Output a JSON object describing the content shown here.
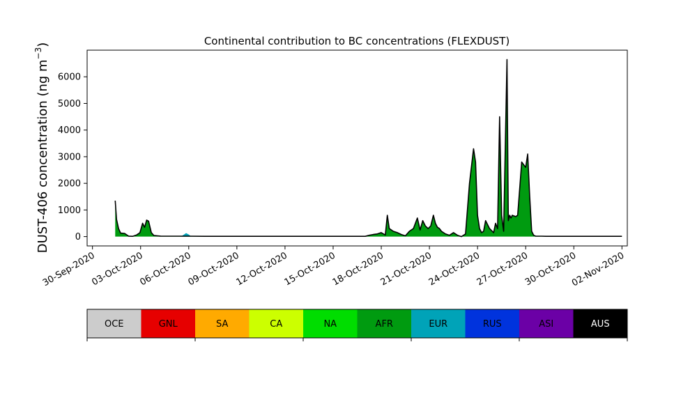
{
  "chart_data": {
    "type": "area",
    "title": "Continental contribution to BC concentrations (FLEXDUST)",
    "ylabel_main": "DUST-406 concentration (ng m",
    "ylabel_sup": "−3",
    "ylabel_close": ")",
    "xlabel": "",
    "xlim": [
      "2020-09-29T16:00",
      "2020-11-02T08:00"
    ],
    "ylim": [
      -350,
      7000
    ],
    "yticks": [
      0,
      1000,
      2000,
      3000,
      4000,
      5000,
      6000
    ],
    "ytick_labels": [
      "0",
      "1000",
      "2000",
      "3000",
      "4000",
      "5000",
      "6000"
    ],
    "xtick_dates": [
      "2020-09-30",
      "2020-10-03",
      "2020-10-06",
      "2020-10-09",
      "2020-10-12",
      "2020-10-15",
      "2020-10-18",
      "2020-10-21",
      "2020-10-24",
      "2020-10-27",
      "2020-10-30",
      "2020-11-02"
    ],
    "xtick_labels": [
      "30-Sep-2020",
      "03-Oct-2020",
      "06-Oct-2020",
      "09-Oct-2020",
      "12-Oct-2020",
      "15-Oct-2020",
      "18-Oct-2020",
      "21-Oct-2020",
      "24-Oct-2020",
      "27-Oct-2020",
      "30-Oct-2020",
      "02-Nov-2020"
    ],
    "legend": [
      {
        "label": "OCE",
        "color": "#cccccc",
        "text_color": "#000000"
      },
      {
        "label": "GNL",
        "color": "#e60000",
        "text_color": "#000000"
      },
      {
        "label": "SA",
        "color": "#ffaa00",
        "text_color": "#000000"
      },
      {
        "label": "CA",
        "color": "#ccff00",
        "text_color": "#000000"
      },
      {
        "label": "NA",
        "color": "#00dd00",
        "text_color": "#000000"
      },
      {
        "label": "AFR",
        "color": "#009b10",
        "text_color": "#000000"
      },
      {
        "label": "EUR",
        "color": "#00a3b8",
        "text_color": "#000000"
      },
      {
        "label": "RUS",
        "color": "#0033dd",
        "text_color": "#000000"
      },
      {
        "label": "ASI",
        "color": "#6b00a6",
        "text_color": "#000000"
      },
      {
        "label": "AUS",
        "color": "#000000",
        "text_color": "#ffffff"
      }
    ],
    "total_line_color": "#000000",
    "series": [
      {
        "name": "AFR",
        "color": "#009b10",
        "x": [
          "2020-10-01T10:00",
          "2020-10-01T12:00",
          "2020-10-01T15:00",
          "2020-10-01T18:00",
          "2020-10-02T00:00",
          "2020-10-02T06:00",
          "2020-10-02T12:00",
          "2020-10-02T18:00",
          "2020-10-02T23:00",
          "2020-10-03T03:00",
          "2020-10-03T06:00",
          "2020-10-03T09:00",
          "2020-10-03T12:00",
          "2020-10-03T16:00",
          "2020-10-03T20:00",
          "2020-10-04T06:00",
          "2020-10-05T00:00",
          "2020-10-06T00:00",
          "2020-10-07T00:00",
          "2020-10-10T00:00",
          "2020-10-14T00:00",
          "2020-10-17T00:00",
          "2020-10-17T06:00",
          "2020-10-17T12:00",
          "2020-10-17T15:00",
          "2020-10-17T18:00",
          "2020-10-18T00:00",
          "2020-10-18T06:00",
          "2020-10-18T09:00",
          "2020-10-18T12:00",
          "2020-10-18T18:00",
          "2020-10-19T00:00",
          "2020-10-19T06:00",
          "2020-10-19T12:00",
          "2020-10-19T18:00",
          "2020-10-20T00:00",
          "2020-10-20T06:00",
          "2020-10-20T10:00",
          "2020-10-20T14:00",
          "2020-10-20T18:00",
          "2020-10-20T22:00",
          "2020-10-21T02:00",
          "2020-10-21T06:00",
          "2020-10-21T09:00",
          "2020-10-21T12:00",
          "2020-10-21T15:00",
          "2020-10-21T18:00",
          "2020-10-22T00:00",
          "2020-10-22T06:00",
          "2020-10-22T12:00",
          "2020-10-22T18:00",
          "2020-10-23T00:00",
          "2020-10-23T06:00",
          "2020-10-23T12:00",
          "2020-10-23T18:00",
          "2020-10-23T21:00",
          "2020-10-24T00:00",
          "2020-10-24T03:00",
          "2020-10-24T06:00",
          "2020-10-24T09:00",
          "2020-10-24T12:00",
          "2020-10-24T18:00",
          "2020-10-25T00:00",
          "2020-10-25T03:00",
          "2020-10-25T06:00",
          "2020-10-25T09:00",
          "2020-10-25T12:00",
          "2020-10-25T15:00",
          "2020-10-25T18:00",
          "2020-10-25T20:00",
          "2020-10-25T22:00",
          "2020-10-26T00:00",
          "2020-10-26T02:00",
          "2020-10-26T03:00",
          "2020-10-26T04:00",
          "2020-10-26T06:00",
          "2020-10-26T09:00",
          "2020-10-26T12:00",
          "2020-10-26T18:00",
          "2020-10-27T00:00",
          "2020-10-27T03:00",
          "2020-10-27T06:00",
          "2020-10-27T09:00",
          "2020-10-27T12:00",
          "2020-10-27T15:00",
          "2020-10-27T18:00",
          "2020-10-28T00:00",
          "2020-10-28T06:00",
          "2020-10-29T00:00",
          "2020-10-30T00:00",
          "2020-10-31T00:00",
          "2020-11-01T00:00",
          "2020-11-01T12:00",
          "2020-11-02T00:00"
        ],
        "y": [
          1350,
          650,
          300,
          130,
          120,
          20,
          10,
          60,
          150,
          500,
          350,
          620,
          580,
          150,
          40,
          20,
          15,
          15,
          10,
          10,
          10,
          10,
          50,
          80,
          90,
          100,
          150,
          60,
          800,
          300,
          200,
          150,
          80,
          30,
          200,
          300,
          700,
          250,
          600,
          400,
          300,
          400,
          800,
          500,
          350,
          300,
          200,
          100,
          50,
          150,
          50,
          0,
          100,
          2000,
          3300,
          2800,
          800,
          300,
          150,
          200,
          600,
          300,
          150,
          500,
          300,
          4500,
          800,
          200,
          4000,
          6650,
          600,
          800,
          700,
          750,
          800,
          780,
          750,
          800,
          2800,
          2600,
          3100,
          1500,
          200,
          50,
          15,
          15,
          15,
          10,
          10,
          10,
          10,
          10,
          10,
          10
        ]
      },
      {
        "name": "EUR",
        "color": "#00a3b8",
        "x": [
          "2020-10-05T12:00",
          "2020-10-05T16:00",
          "2020-10-05T20:00",
          "2020-10-06T00:00",
          "2020-10-06T04:00"
        ],
        "y": [
          0,
          60,
          130,
          80,
          0
        ]
      }
    ]
  }
}
